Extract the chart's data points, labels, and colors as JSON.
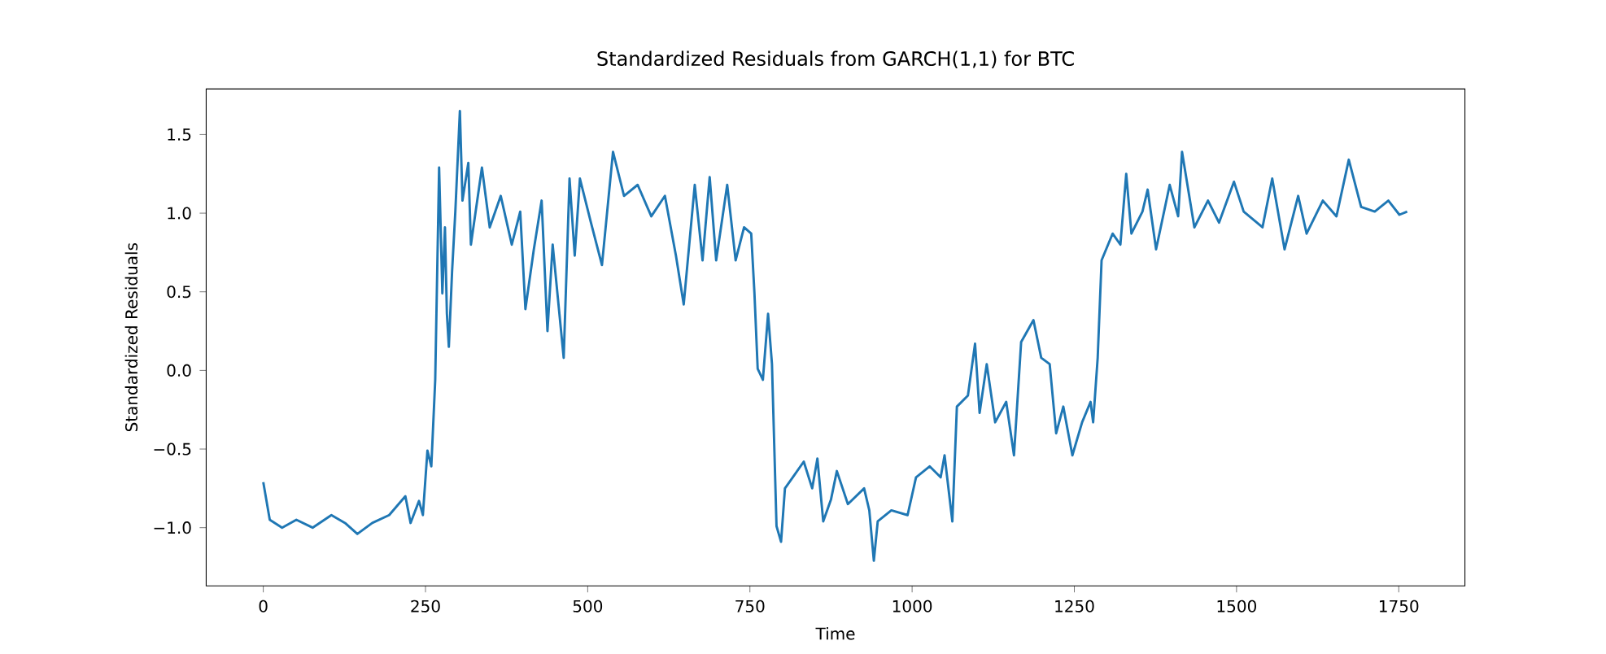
{
  "chart_data": {
    "type": "line",
    "title": "Standardized Residuals from GARCH(1,1) for BTC",
    "xlabel": "Time",
    "ylabel": "Standardized Residuals",
    "xlim": [
      -88,
      1852
    ],
    "ylim": [
      -1.37,
      1.79
    ],
    "xticks": [
      0,
      250,
      500,
      750,
      1000,
      1250,
      1500,
      1750
    ],
    "yticks": [
      {
        "value": -1.0,
        "label": "−1.0"
      },
      {
        "value": -0.5,
        "label": "−0.5"
      },
      {
        "value": 0.0,
        "label": "0.0"
      },
      {
        "value": 0.5,
        "label": "0.5"
      },
      {
        "value": 1.0,
        "label": "1.0"
      },
      {
        "value": 1.5,
        "label": "1.5"
      }
    ],
    "grid": false,
    "marker": "none",
    "line_style": "solid",
    "x": [
      0,
      10,
      29,
      51,
      76,
      105,
      126,
      145,
      168,
      194,
      219,
      227,
      240,
      246,
      253,
      259,
      265,
      271,
      276,
      280,
      283,
      286,
      291,
      296,
      303,
      307,
      316,
      320,
      337,
      349,
      366,
      383,
      396,
      404,
      417,
      429,
      438,
      446,
      463,
      472,
      480,
      488,
      505,
      522,
      539,
      556,
      577,
      598,
      619,
      636,
      648,
      665,
      677,
      688,
      698,
      715,
      728,
      741,
      752,
      757,
      762,
      770,
      778,
      784,
      791,
      798,
      804,
      816,
      833,
      846,
      854,
      863,
      875,
      884,
      901,
      926,
      934,
      941,
      947,
      968,
      993,
      1006,
      1027,
      1044,
      1050,
      1062,
      1069,
      1086,
      1097,
      1104,
      1115,
      1128,
      1145,
      1157,
      1168,
      1187,
      1199,
      1212,
      1222,
      1233,
      1247,
      1262,
      1275,
      1279,
      1286,
      1292,
      1309,
      1321,
      1330,
      1338,
      1355,
      1363,
      1376,
      1397,
      1410,
      1416,
      1435,
      1456,
      1473,
      1496,
      1511,
      1540,
      1555,
      1574,
      1595,
      1608,
      1633,
      1654,
      1673,
      1692,
      1713,
      1734,
      1751,
      1763
    ],
    "series": [
      {
        "color": "#1f77b4",
        "values": [
          -0.71,
          -0.95,
          -1.0,
          -0.95,
          -1.0,
          -0.92,
          -0.97,
          -1.04,
          -0.97,
          -0.92,
          -0.8,
          -0.97,
          -0.83,
          -0.92,
          -0.51,
          -0.61,
          -0.06,
          1.29,
          0.49,
          0.91,
          0.36,
          0.15,
          0.63,
          1.01,
          1.65,
          1.08,
          1.32,
          0.8,
          1.29,
          0.91,
          1.11,
          0.8,
          1.01,
          0.39,
          0.77,
          1.08,
          0.25,
          0.8,
          0.08,
          1.22,
          0.73,
          1.22,
          0.94,
          0.67,
          1.39,
          1.11,
          1.18,
          0.98,
          1.11,
          0.73,
          0.42,
          1.18,
          0.7,
          1.23,
          0.7,
          1.18,
          0.7,
          0.91,
          0.87,
          0.49,
          0.01,
          -0.06,
          0.36,
          0.04,
          -0.99,
          -1.09,
          -0.75,
          -0.68,
          -0.58,
          -0.75,
          -0.56,
          -0.96,
          -0.82,
          -0.64,
          -0.85,
          -0.75,
          -0.89,
          -1.21,
          -0.96,
          -0.89,
          -0.92,
          -0.68,
          -0.61,
          -0.68,
          -0.54,
          -0.96,
          -0.23,
          -0.16,
          0.17,
          -0.27,
          0.04,
          -0.33,
          -0.2,
          -0.54,
          0.18,
          0.32,
          0.08,
          0.04,
          -0.4,
          -0.23,
          -0.54,
          -0.33,
          -0.2,
          -0.33,
          0.08,
          0.7,
          0.87,
          0.8,
          1.25,
          0.87,
          1.01,
          1.15,
          0.77,
          1.18,
          0.98,
          1.39,
          0.91,
          1.08,
          0.94,
          1.2,
          1.01,
          0.91,
          1.22,
          0.77,
          1.11,
          0.87,
          1.08,
          0.98,
          1.34,
          1.04,
          1.01,
          1.08,
          0.99,
          1.01
        ]
      }
    ]
  }
}
